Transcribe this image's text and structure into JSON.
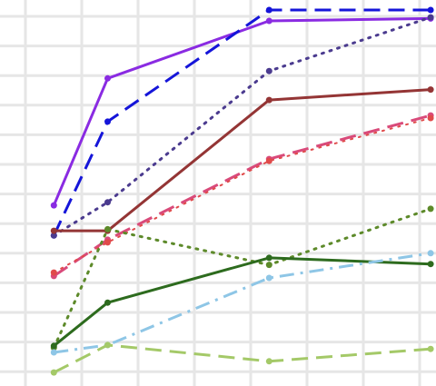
{
  "chart_data": {
    "type": "line",
    "x": [
      1,
      2,
      5,
      8
    ],
    "xlim": [
      0.0,
      8.1
    ],
    "ylim": [
      0,
      100
    ],
    "grid": true,
    "series": [
      {
        "values": [
          46.8,
          79.7,
          94.6,
          95.2
        ],
        "color": "#8a2be2",
        "dash": "solid",
        "width": 3
      },
      {
        "values": [
          39.0,
          68.5,
          97.4,
          97.4
        ],
        "color": "#1515d9",
        "dash": "dash",
        "width": 3
      },
      {
        "values": [
          39.0,
          47.6,
          81.6,
          95.5
        ],
        "color": "#4b3b8f",
        "dash": "dot",
        "width": 3
      },
      {
        "values": [
          40.2,
          40.2,
          74.1,
          76.8
        ],
        "color": "#943535",
        "dash": "solid",
        "width": 3
      },
      {
        "values": [
          28.5,
          37.9,
          58.8,
          70.1
        ],
        "color": "#d94a7a",
        "dash": "dash",
        "width": 3
      },
      {
        "values": [
          29.4,
          37.2,
          58.3,
          69.4
        ],
        "color": "#e04a4a",
        "dash": "dot",
        "width": 2
      },
      {
        "values": [
          9.9,
          40.6,
          31.4,
          45.9
        ],
        "color": "#5d8a2a",
        "dash": "dot",
        "width": 3
      },
      {
        "values": [
          10.4,
          21.6,
          33.2,
          31.6
        ],
        "color": "#2d6b1e",
        "dash": "solid",
        "width": 3
      },
      {
        "values": [
          8.7,
          10.6,
          28.0,
          34.4
        ],
        "color": "#8ec6e6",
        "dash": "dashdot",
        "width": 3
      },
      {
        "values": [
          3.5,
          10.6,
          6.4,
          9.6
        ],
        "color": "#a4c968",
        "dash": "dash",
        "width": 3
      }
    ]
  }
}
